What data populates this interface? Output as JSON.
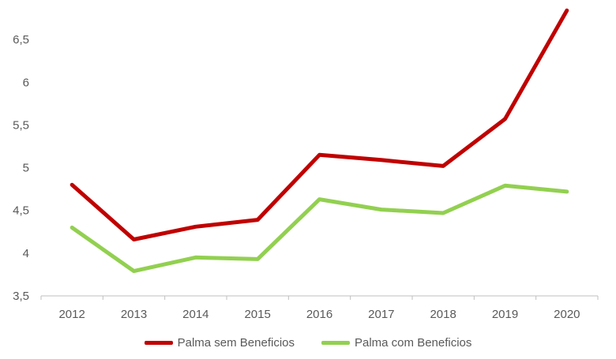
{
  "chart_data": {
    "type": "line",
    "title": "",
    "xlabel": "",
    "ylabel": "",
    "categories": [
      "2012",
      "2013",
      "2014",
      "2015",
      "2016",
      "2017",
      "2018",
      "2019",
      "2020"
    ],
    "ylim": [
      3.5,
      7.0
    ],
    "yticks": [
      3.5,
      4,
      4.5,
      5,
      5.5,
      6,
      6.5
    ],
    "ytick_labels": [
      "3,5",
      "4",
      "4,5",
      "5",
      "5,5",
      "6",
      "6,5"
    ],
    "grid": false,
    "legend_position": "bottom",
    "series": [
      {
        "name": "Palma sem Beneficios",
        "color": "#C00000",
        "values": [
          4.8,
          4.16,
          4.31,
          4.39,
          5.15,
          5.09,
          5.02,
          5.57,
          6.84
        ]
      },
      {
        "name": "Palma com Beneficios",
        "color": "#92D050",
        "values": [
          4.3,
          3.79,
          3.95,
          3.93,
          4.63,
          4.51,
          4.47,
          4.79,
          4.72
        ]
      }
    ]
  }
}
